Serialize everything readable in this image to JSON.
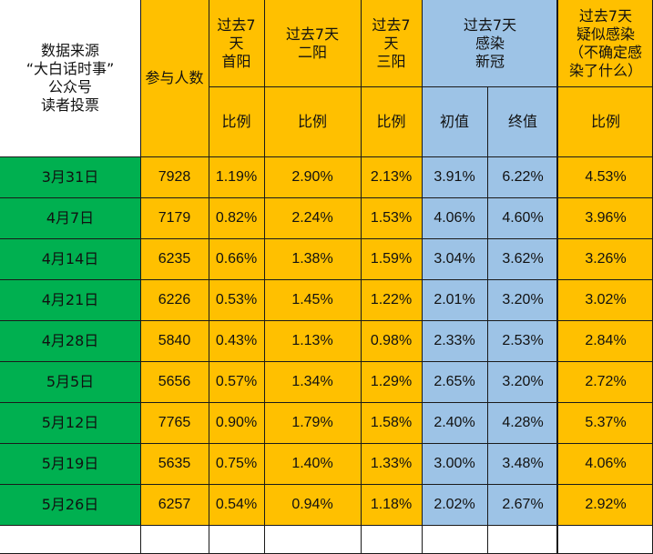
{
  "colors": {
    "yellow": "#ffc000",
    "blue": "#9dc3e6",
    "green": "#00b050",
    "white": "#ffffff",
    "grid": "#1a1a1a"
  },
  "header": {
    "source_note": "数据来源\n“大白话时事”\n公众号\n读者投票",
    "participants": "参与人数",
    "first_positive": "过去7\n天\n首阳",
    "second_positive": "过去7天\n二阳",
    "third_positive": "过去7\n天\n三阳",
    "infected_new": "过去7天\n感染\n新冠",
    "suspected": "过去7天\n疑似感染\n（不确定感\n染了什么）",
    "ratio_1": "比例",
    "ratio_2": "比例",
    "ratio_3": "比例",
    "initial": "初值",
    "final": "终值",
    "ratio_4": "比例"
  },
  "rows": [
    {
      "date": "3月31日",
      "count": "7928",
      "first": "1.19%",
      "second": "2.90%",
      "third": "2.13%",
      "initial": "3.91%",
      "final": "6.22%",
      "suspected": "4.53%"
    },
    {
      "date": "4月7日",
      "count": "7179",
      "first": "0.82%",
      "second": "2.24%",
      "third": "1.53%",
      "initial": "4.06%",
      "final": "4.60%",
      "suspected": "3.96%"
    },
    {
      "date": "4月14日",
      "count": "6235",
      "first": "0.66%",
      "second": "1.38%",
      "third": "1.59%",
      "initial": "3.04%",
      "final": "3.62%",
      "suspected": "3.26%"
    },
    {
      "date": "4月21日",
      "count": "6226",
      "first": "0.53%",
      "second": "1.45%",
      "third": "1.22%",
      "initial": "2.01%",
      "final": "3.20%",
      "suspected": "3.02%"
    },
    {
      "date": "4月28日",
      "count": "5840",
      "first": "0.43%",
      "second": "1.13%",
      "third": "0.98%",
      "initial": "2.33%",
      "final": "2.53%",
      "suspected": "2.84%"
    },
    {
      "date": "5月5日",
      "count": "5656",
      "first": "0.57%",
      "second": "1.34%",
      "third": "1.29%",
      "initial": "2.65%",
      "final": "3.20%",
      "suspected": "2.72%"
    },
    {
      "date": "5月12日",
      "count": "7765",
      "first": "0.90%",
      "second": "1.79%",
      "third": "1.58%",
      "initial": "2.40%",
      "final": "4.28%",
      "suspected": "5.37%"
    },
    {
      "date": "5月19日",
      "count": "5635",
      "first": "0.75%",
      "second": "1.40%",
      "third": "1.33%",
      "initial": "3.00%",
      "final": "3.48%",
      "suspected": "4.06%"
    },
    {
      "date": "5月26日",
      "count": "6257",
      "first": "0.54%",
      "second": "0.94%",
      "third": "1.18%",
      "initial": "2.02%",
      "final": "2.67%",
      "suspected": "2.92%"
    }
  ]
}
